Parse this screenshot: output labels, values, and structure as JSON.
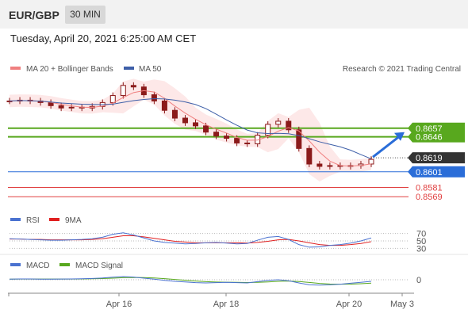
{
  "header": {
    "symbol": "EUR/GBP",
    "timeframe": "30 MIN"
  },
  "datetime": "Tuesday, April 20, 2021 6:25:00 AM CET",
  "legend": {
    "ma20": "MA 20 + Bollinger Bands",
    "ma50": "MA 50",
    "research": "Research © 2021 Trading Central",
    "rsi": "RSI",
    "rsi_ma": "9MA",
    "macd": "MACD",
    "macd_signal": "MACD Signal"
  },
  "colors": {
    "ma20": "#f08080",
    "ma50": "#3e5fa8",
    "band": "#fde2e2",
    "green": "#58a81e",
    "blue": "#2a6dd8",
    "red": "#e04040",
    "current": "#333333",
    "candle": "#8b1a1a",
    "rsi": "#4a72d0",
    "rsi_ma": "#e02020",
    "macd": "#4a72d0",
    "macd_signal": "#58a81e"
  },
  "chart_data": {
    "type": "candlestick",
    "symbol": "EUR/GBP",
    "timeframe": "30 MIN",
    "x_ticks": [
      "Apr 16",
      "Apr 18",
      "Apr 20",
      "May 3"
    ],
    "current_price": 0.8619,
    "levels": [
      {
        "value": 0.8657,
        "kind": "resistance",
        "color": "#58a81e"
      },
      {
        "value": 0.8646,
        "kind": "resistance",
        "color": "#58a81e"
      },
      {
        "value": 0.8601,
        "kind": "pivot",
        "color": "#2a6dd8"
      },
      {
        "value": 0.8581,
        "kind": "support",
        "color": "#e04040"
      },
      {
        "value": 0.8569,
        "kind": "support",
        "color": "#e04040"
      }
    ],
    "price_labels": {
      "r2": "0.8657",
      "r1": "0.8646",
      "current": "0.8619",
      "pivot": "0.8601",
      "s1": "0.8581",
      "s2": "0.8569"
    },
    "price_series": [
      0.8692,
      0.8693,
      0.8692,
      0.869,
      0.8686,
      0.8683,
      0.8684,
      0.8683,
      0.8685,
      0.869,
      0.8699,
      0.8712,
      0.871,
      0.87,
      0.8692,
      0.868,
      0.867,
      0.8664,
      0.866,
      0.8652,
      0.8647,
      0.8644,
      0.8638,
      0.8637,
      0.8648,
      0.8662,
      0.8666,
      0.8655,
      0.8631,
      0.8611,
      0.8608,
      0.8609,
      0.8608,
      0.8609,
      0.8611,
      0.8617
    ],
    "rsi": {
      "levels": [
        "70",
        "50",
        "30"
      ],
      "values": [
        56,
        55,
        54,
        53,
        52,
        52,
        53,
        54,
        56,
        60,
        68,
        72,
        66,
        58,
        50,
        46,
        44,
        42,
        43,
        45,
        46,
        44,
        42,
        43,
        52,
        60,
        62,
        54,
        40,
        33,
        34,
        38,
        40,
        44,
        50,
        58
      ]
    },
    "rsi_ma": [
      55,
      55,
      54,
      54,
      53,
      53,
      53,
      53,
      54,
      56,
      60,
      64,
      64,
      61,
      57,
      53,
      49,
      47,
      45,
      45,
      45,
      45,
      45,
      44,
      46,
      49,
      53,
      54,
      50,
      45,
      40,
      38,
      38,
      40,
      43,
      48
    ],
    "macd": {
      "levels": [
        "0"
      ],
      "values": [
        0.2,
        0.25,
        0.25,
        0.2,
        0.2,
        0.22,
        0.25,
        0.3,
        0.4,
        0.55,
        0.8,
        1.0,
        0.85,
        0.5,
        0.2,
        -0.2,
        -0.5,
        -0.7,
        -0.9,
        -1.0,
        -0.9,
        -0.8,
        -0.9,
        -1.0,
        -0.6,
        -0.2,
        0.0,
        -0.3,
        -1.0,
        -1.6,
        -1.7,
        -1.6,
        -1.4,
        -1.1,
        -0.8,
        -0.5
      ]
    },
    "macd_signal": [
      0.2,
      0.22,
      0.23,
      0.22,
      0.22,
      0.22,
      0.23,
      0.25,
      0.3,
      0.38,
      0.5,
      0.65,
      0.72,
      0.68,
      0.55,
      0.35,
      0.1,
      -0.15,
      -0.4,
      -0.6,
      -0.72,
      -0.78,
      -0.82,
      -0.86,
      -0.82,
      -0.68,
      -0.5,
      -0.42,
      -0.55,
      -0.85,
      -1.15,
      -1.35,
      -1.42,
      -1.38,
      -1.25,
      -1.05
    ]
  }
}
